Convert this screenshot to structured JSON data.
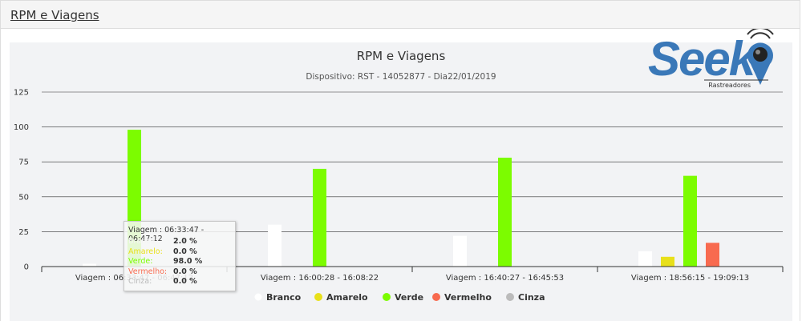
{
  "header": {
    "title": "RPM e Viagens"
  },
  "logo": {
    "name": "Seek",
    "tagline": "Rastreadores"
  },
  "chart_data": {
    "type": "bar",
    "title": "RPM e Viagens",
    "subtitle": "Dispositivo: RST - 14052877 - Dia22/01/2019",
    "categories": [
      "Viagem : 06:33:47 - 06:47:12",
      "Viagem : 16:00:28 - 16:08:22",
      "Viagem : 16:40:27 - 16:45:53",
      "Viagem : 18:56:15 - 19:09:13"
    ],
    "series": [
      {
        "name": "Branco",
        "color": "#ffffff",
        "values": [
          2,
          30,
          22,
          11
        ]
      },
      {
        "name": "Amarelo",
        "color": "#e8e01a",
        "values": [
          0,
          0,
          0,
          7
        ]
      },
      {
        "name": "Verde",
        "color": "#7cfc00",
        "values": [
          98,
          70,
          78,
          65
        ]
      },
      {
        "name": "Vermelho",
        "color": "#f86a4f",
        "values": [
          0,
          0,
          0,
          17
        ]
      },
      {
        "name": "Cinza",
        "color": "#bbbbbb",
        "values": [
          0,
          0,
          0,
          0
        ]
      }
    ],
    "ylim": [
      0,
      125
    ],
    "yticks": [
      "0",
      "25",
      "50",
      "75",
      "100",
      "125"
    ],
    "grid": true,
    "legend_position": "bottom-center"
  },
  "tooltip": {
    "title": "Viagem : 06:33:47 - 06:47:12",
    "rows": [
      {
        "name": "Branco:",
        "value": "2.0 %",
        "color": "#ffffff"
      },
      {
        "name": "Amarelo:",
        "value": "0.0 %",
        "color": "#e8e01a"
      },
      {
        "name": "Verde:",
        "value": "98.0 %",
        "color": "#7cfc00"
      },
      {
        "name": "Vermelho:",
        "value": "0.0 %",
        "color": "#f86a4f"
      },
      {
        "name": "Cinza:",
        "value": "0.0 %",
        "color": "#bbbbbb"
      }
    ]
  }
}
